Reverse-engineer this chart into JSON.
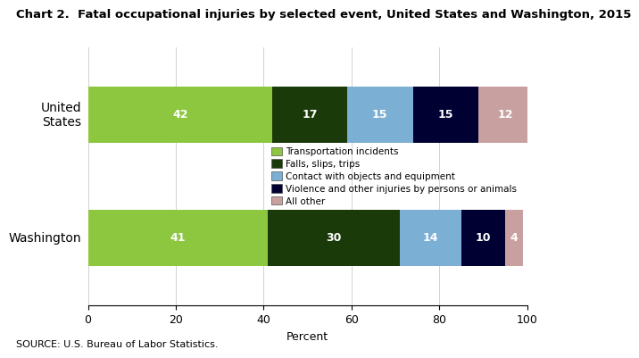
{
  "title": "Chart 2.  Fatal occupational injuries by selected event, United States and Washington, 2015",
  "categories": [
    "United\nStates",
    "Washington"
  ],
  "segments": [
    {
      "label": "Transportation incidents",
      "color": "#8dc63f",
      "values": [
        42,
        41
      ]
    },
    {
      "label": "Falls, slips, trips",
      "color": "#1a3a0a",
      "values": [
        17,
        30
      ]
    },
    {
      "label": "Contact with objects and equipment",
      "color": "#7bafd4",
      "values": [
        15,
        14
      ]
    },
    {
      "label": "Violence and other injuries by persons or animals",
      "color": "#000033",
      "values": [
        15,
        10
      ]
    },
    {
      "label": "All other",
      "color": "#c9a0a0",
      "values": [
        12,
        4
      ]
    }
  ],
  "xlabel": "Percent",
  "xlim": [
    0,
    100
  ],
  "xticks": [
    0,
    20,
    40,
    60,
    80,
    100
  ],
  "source": "SOURCE: U.S. Bureau of Labor Statistics.",
  "bar_height": 0.45,
  "label_color": "white",
  "label_fontsize": 9,
  "title_fontsize": 9.5,
  "source_fontsize": 8,
  "legend_fontsize": 7.5,
  "ytick_fontsize": 10,
  "xtick_fontsize": 9
}
